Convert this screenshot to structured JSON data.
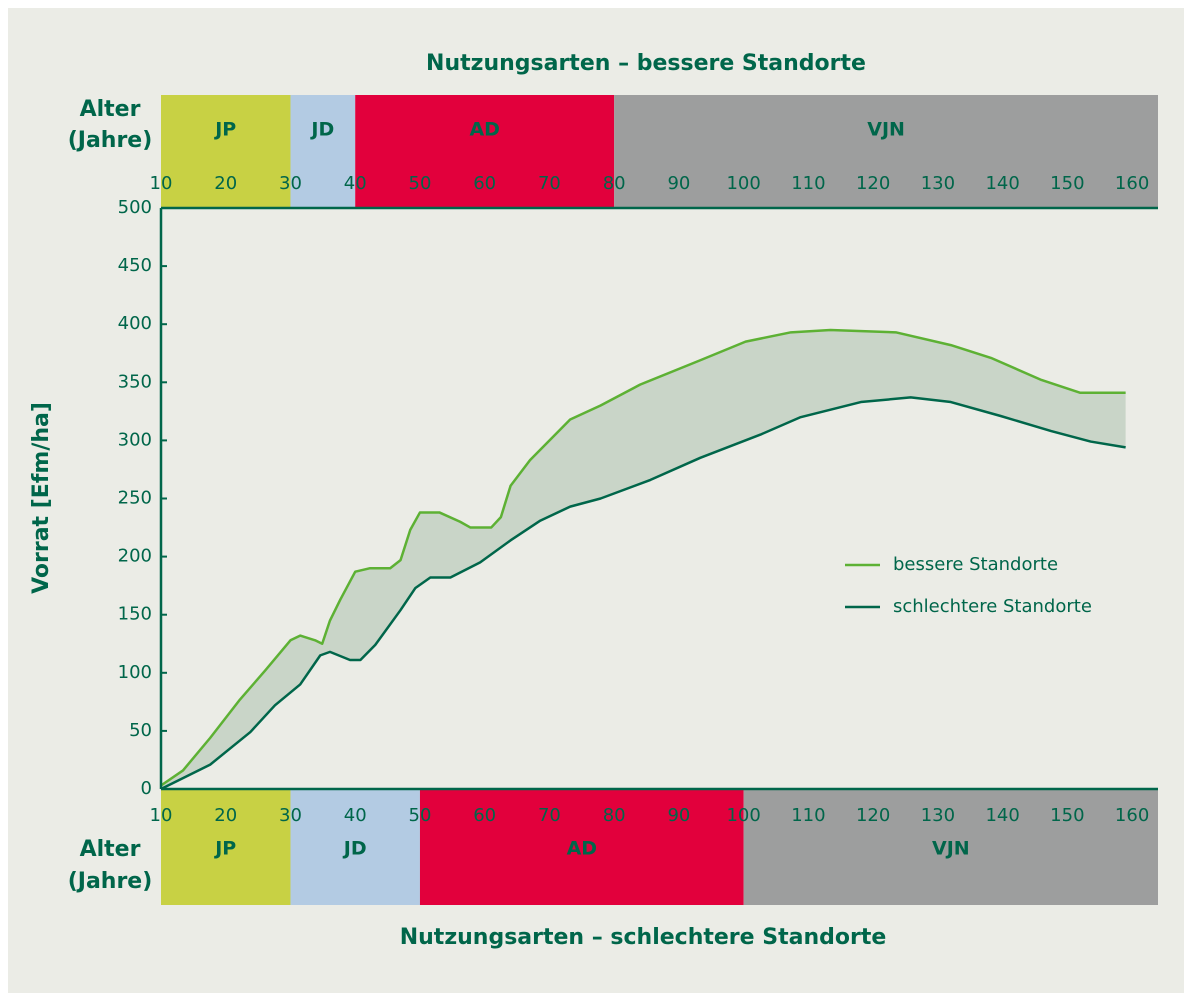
{
  "chart_data": {
    "type": "line",
    "title": "Nutzungsarten – bessere Standorte",
    "subtitle": "Nutzungsarten – schlechtere Standorte",
    "y_label": "Vorrat [Efm/ha]",
    "age_label_top": [
      "Alter",
      "(Jahre)"
    ],
    "age_label_bottom": [
      "Alter",
      "(Jahre)"
    ],
    "xlim": [
      10,
      164
    ],
    "ylim": [
      0,
      500
    ],
    "xticks": [
      10,
      20,
      30,
      40,
      50,
      60,
      70,
      80,
      90,
      100,
      110,
      120,
      130,
      140,
      150,
      160
    ],
    "xticks_top": [
      10,
      20,
      30,
      40,
      50,
      60,
      70,
      80,
      90,
      100,
      110,
      120,
      130,
      140,
      150,
      160
    ],
    "yticks": [
      0,
      50,
      100,
      150,
      200,
      250,
      300,
      350,
      400,
      450,
      500
    ],
    "band_fill": "#c9d5c8",
    "bands_top": [
      {
        "label": "JP",
        "start": 10,
        "end": 30,
        "color": "#c8d144"
      },
      {
        "label": "JD",
        "start": 30,
        "end": 40,
        "color": "#b3cbe3"
      },
      {
        "label": "AD",
        "start": 40,
        "end": 80,
        "color": "#e2003c"
      },
      {
        "label": "VJN",
        "start": 80,
        "end": 164,
        "color": "#9d9e9e"
      }
    ],
    "bands_bottom": [
      {
        "label": "JP",
        "start": 10,
        "end": 30,
        "color": "#c8d144"
      },
      {
        "label": "JD",
        "start": 30,
        "end": 50,
        "color": "#b3cbe3"
      },
      {
        "label": "AD",
        "start": 50,
        "end": 100,
        "color": "#e2003c"
      },
      {
        "label": "VJN",
        "start": 100,
        "end": 164,
        "color": "#9d9e9e"
      }
    ],
    "series": [
      {
        "name": "bessere Standorte",
        "color": "#5db134",
        "x": [
          10,
          13.4,
          17.6,
          22.2,
          26.1,
          30,
          31.5,
          33.8,
          34.9,
          36.1,
          37.7,
          40,
          42.3,
          45.4,
          47,
          48.5,
          50,
          53,
          56.2,
          57.8,
          61,
          62.5,
          64,
          67,
          73.2,
          77.9,
          84,
          93.3,
          100.3,
          107.3,
          113.4,
          123.5,
          132,
          138.2,
          146,
          152,
          159
        ],
        "values": [
          3,
          16,
          44,
          77,
          102,
          128,
          132,
          128,
          125,
          145,
          163,
          187,
          190,
          190,
          197,
          223,
          238,
          238,
          230,
          225,
          225,
          234,
          261,
          283,
          318,
          330,
          348,
          369,
          385,
          393,
          395,
          393,
          382,
          371,
          352,
          341,
          341
        ]
      },
      {
        "name": "schlechtere Standorte",
        "color": "#00664a",
        "x": [
          10,
          17.6,
          23.8,
          27.6,
          31.5,
          34.6,
          36.1,
          39.2,
          40.8,
          43.1,
          47,
          49.3,
          51.6,
          54.7,
          59.3,
          64,
          68.6,
          73.2,
          77.9,
          85.6,
          93.3,
          102.6,
          108.8,
          118.1,
          125.8,
          132,
          139.7,
          147.5,
          153.6,
          159
        ],
        "values": [
          0,
          21,
          49,
          72,
          90,
          115,
          118,
          111,
          111,
          124,
          154,
          173,
          182,
          182,
          195,
          214,
          231,
          243,
          250,
          266,
          285,
          305,
          320,
          333,
          337,
          333,
          321,
          308,
          299,
          294
        ]
      }
    ]
  }
}
